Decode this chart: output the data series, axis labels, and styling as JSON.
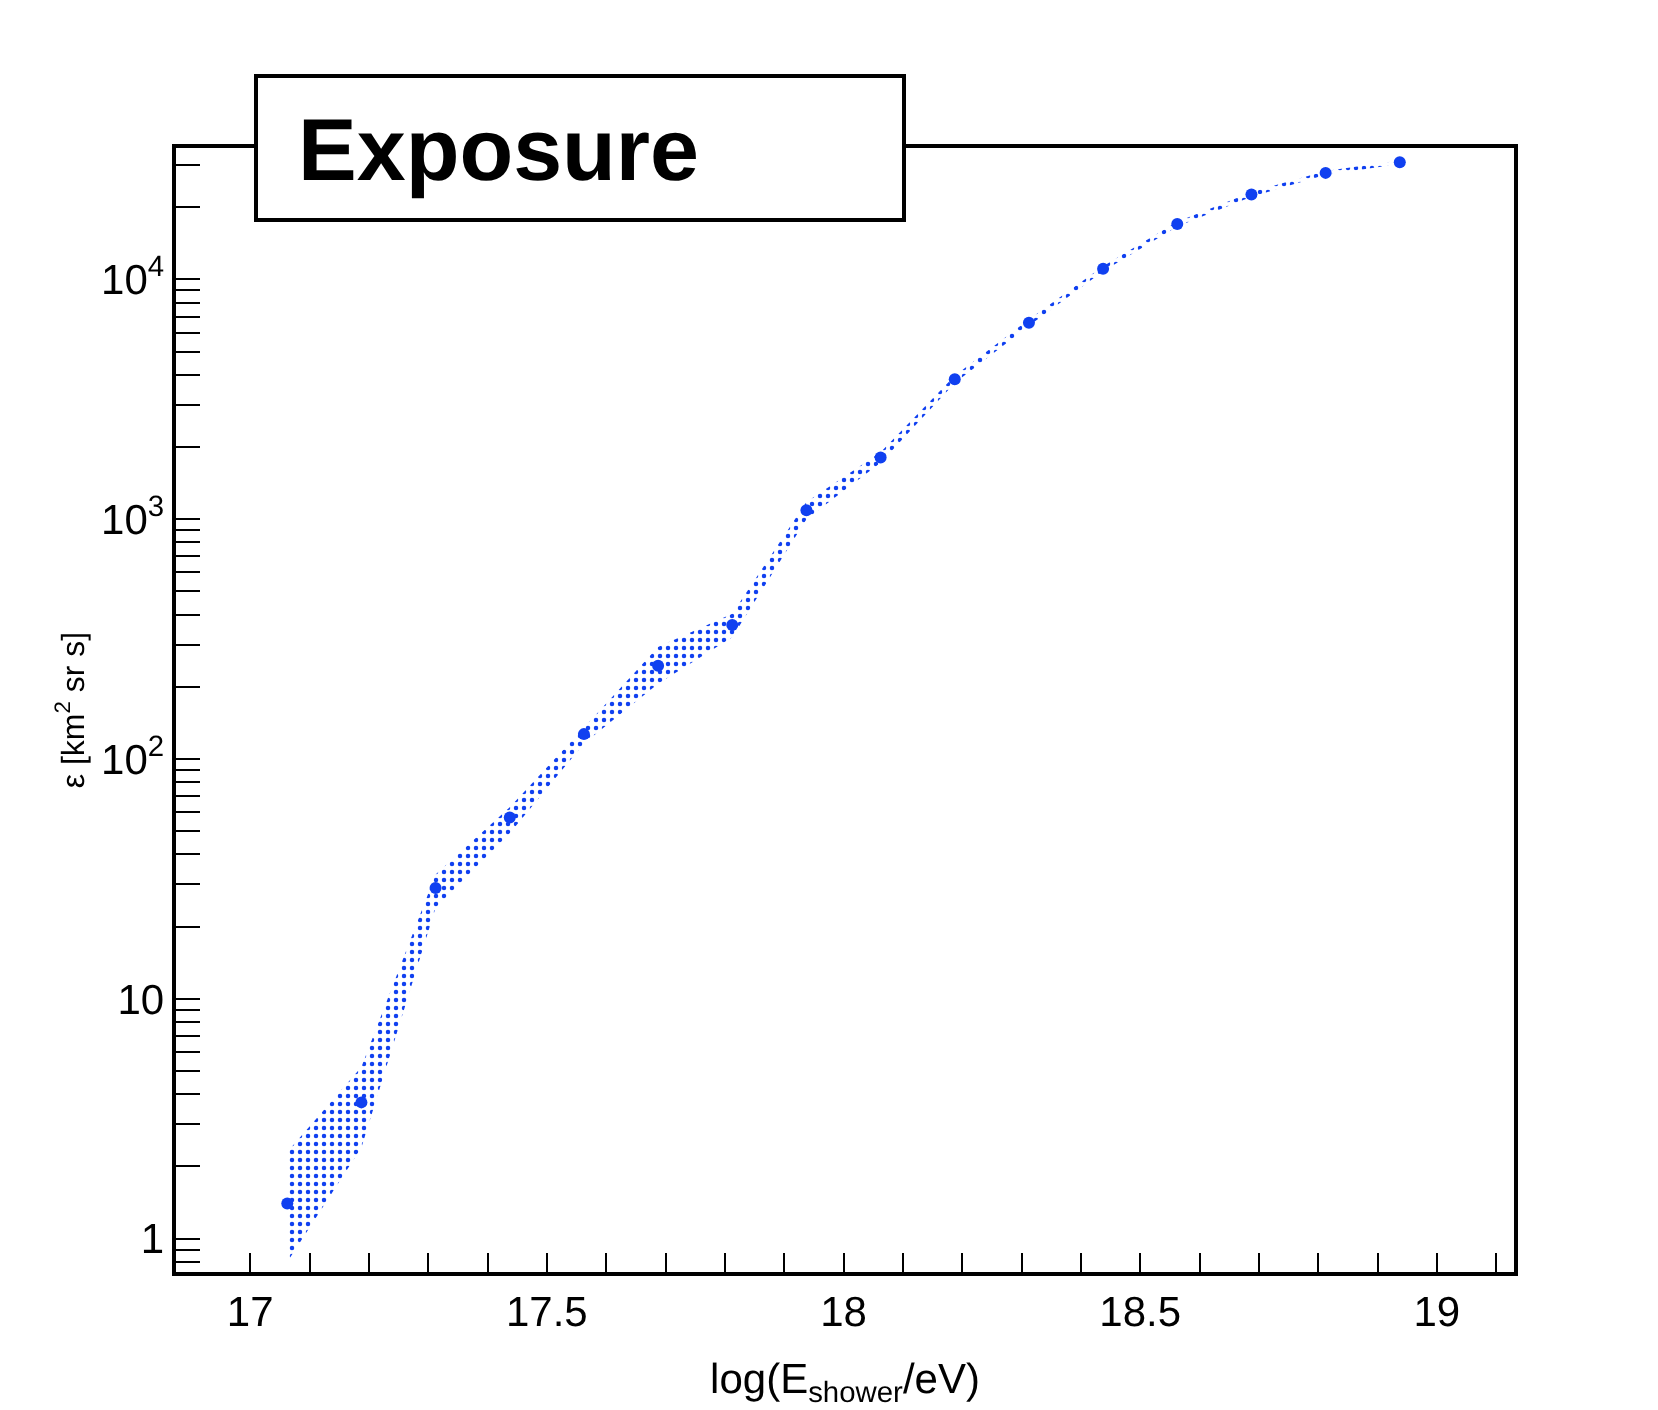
{
  "chart_data": {
    "type": "scatter",
    "title": "Exposure",
    "xlabel": "log(E$_{shower}$/eV)",
    "ylabel": "ε [km$^{2}$ sr s]",
    "x": [
      17.0625,
      17.1875,
      17.3125,
      17.4375,
      17.5625,
      17.6875,
      17.8125,
      17.9375,
      18.0625,
      18.1875,
      18.3125,
      18.4375,
      18.5625,
      18.6875,
      18.8125,
      18.9375
    ],
    "series": [
      {
        "color": "#1040f0",
        "values": [
          1.4,
          3.7,
          29,
          57,
          127,
          245,
          362,
          1090,
          1810,
          3830,
          6600,
          11070,
          17000,
          22600,
          27800,
          30800
        ],
        "lower": [
          0.8,
          2.4,
          24,
          49,
          116,
          206,
          322,
          1000,
          1720,
          3700,
          6400,
          10800,
          16600,
          22100,
          27300,
          30300
        ],
        "upper": [
          2.3,
          5.2,
          33,
          63,
          135,
          293,
          403,
          1180,
          1900,
          3960,
          6800,
          11350,
          17400,
          23100,
          28300,
          31300
        ]
      }
    ],
    "log": "y",
    "marker": "circle",
    "grid": false,
    "xlim": [
      16.875,
      19.13
    ],
    "ylim": [
      0.726,
      35300
    ],
    "xticks": [
      17,
      {
        "value": 17.1,
        "label": null
      },
      {
        "value": 17.2,
        "label": null
      },
      {
        "value": 17.3,
        "label": null
      },
      {
        "value": 17.4,
        "label": null
      },
      17.5,
      {
        "value": 17.6,
        "label": null
      },
      {
        "value": 17.7,
        "label": null
      },
      {
        "value": 17.8,
        "label": null
      },
      {
        "value": 17.9,
        "label": null
      },
      18,
      {
        "value": 18.1,
        "label": null
      },
      {
        "value": 18.2,
        "label": null
      },
      {
        "value": 18.3,
        "label": null
      },
      {
        "value": 18.4,
        "label": null
      },
      18.5,
      {
        "value": 18.6,
        "label": null
      },
      {
        "value": 18.7,
        "label": null
      },
      {
        "value": 18.8,
        "label": null
      },
      {
        "value": 18.9,
        "label": null
      },
      19,
      {
        "value": 19.1,
        "label": null
      }
    ],
    "yticks": [
      {
        "value": 0.8,
        "label": null
      },
      {
        "value": 0.9,
        "label": null
      },
      1,
      {
        "value": 2,
        "label": null
      },
      {
        "value": 3,
        "label": null
      },
      {
        "value": 4,
        "label": null
      },
      {
        "value": 5,
        "label": null
      },
      {
        "value": 6,
        "label": null
      },
      {
        "value": 7,
        "label": null
      },
      {
        "value": 8,
        "label": null
      },
      {
        "value": 9,
        "label": null
      },
      10,
      {
        "value": 20,
        "label": null
      },
      {
        "value": 30,
        "label": null
      },
      {
        "value": 40,
        "label": null
      },
      {
        "value": 50,
        "label": null
      },
      {
        "value": 60,
        "label": null
      },
      {
        "value": 70,
        "label": null
      },
      {
        "value": 80,
        "label": null
      },
      {
        "value": 90,
        "label": null
      },
      {
        "value": 100,
        "label": "10$^{2}$"
      },
      {
        "value": 200,
        "label": null
      },
      {
        "value": 300,
        "label": null
      },
      {
        "value": 400,
        "label": null
      },
      {
        "value": 500,
        "label": null
      },
      {
        "value": 600,
        "label": null
      },
      {
        "value": 700,
        "label": null
      },
      {
        "value": 800,
        "label": null
      },
      {
        "value": 900,
        "label": null
      },
      {
        "value": 1000,
        "label": "10$^{3}$"
      },
      {
        "value": 2000,
        "label": null
      },
      {
        "value": 3000,
        "label": null
      },
      {
        "value": 4000,
        "label": null
      },
      {
        "value": 5000,
        "label": null
      },
      {
        "value": 6000,
        "label": null
      },
      {
        "value": 7000,
        "label": null
      },
      {
        "value": 8000,
        "label": null
      },
      {
        "value": 9000,
        "label": null
      },
      {
        "value": 10000,
        "label": "10$^{4}$"
      },
      {
        "value": 20000,
        "label": null
      },
      {
        "value": 30000,
        "label": null
      }
    ]
  }
}
